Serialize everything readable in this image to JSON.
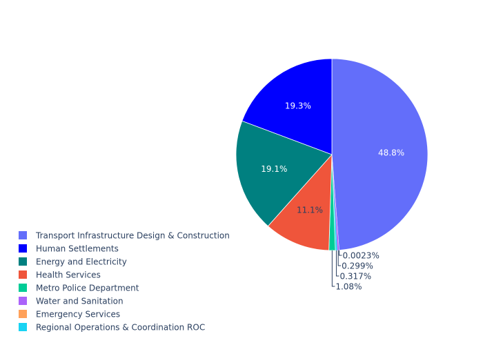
{
  "chart_data": {
    "type": "pie",
    "start_angle_deg": 90,
    "direction": "clockwise",
    "legend_position": "bottom-left",
    "slices": [
      {
        "label": "Transport Infrastructure Design & Construction",
        "percent": 48.8,
        "text": "48.8%",
        "color": "#636efa",
        "text_color": "#ffffff",
        "label_side": "inside"
      },
      {
        "label": "Emergency Services",
        "percent": 0.0023,
        "text": "0.0023%",
        "color": "#ffa15a",
        "text_color": "#2a3f5f",
        "label_side": "outside"
      },
      {
        "label": "Water and Sanitation",
        "percent": 0.299,
        "text": "0.299%",
        "color": "#ab63fa",
        "text_color": "#2a3f5f",
        "label_side": "outside"
      },
      {
        "label": "Regional Operations & Coordination ROC",
        "percent": 0.317,
        "text": "0.317%",
        "color": "#19d3f3",
        "text_color": "#2a3f5f",
        "label_side": "outside"
      },
      {
        "label": "Metro Police Department",
        "percent": 1.08,
        "text": "1.08%",
        "color": "#00cc96",
        "text_color": "#2a3f5f",
        "label_side": "outside"
      },
      {
        "label": "Health Services",
        "percent": 11.1,
        "text": "11.1%",
        "color": "#ef553b",
        "text_color": "#2a3f5f",
        "label_side": "inside"
      },
      {
        "label": "Energy and Electricity",
        "percent": 19.1,
        "text": "19.1%",
        "color": "#008080",
        "text_color": "#ffffff",
        "label_side": "inside"
      },
      {
        "label": "Human Settlements",
        "percent": 19.3,
        "text": "19.3%",
        "color": "#0000ff",
        "text_color": "#ffffff",
        "label_side": "inside"
      }
    ],
    "legend": [
      {
        "label": "Transport Infrastructure Design & Construction",
        "color": "#636efa"
      },
      {
        "label": "Human Settlements",
        "color": "#0000ff"
      },
      {
        "label": "Energy and Electricity",
        "color": "#008080"
      },
      {
        "label": "Health Services",
        "color": "#ef553b"
      },
      {
        "label": "Metro Police Department",
        "color": "#00cc96"
      },
      {
        "label": "Water and Sanitation",
        "color": "#ab63fa"
      },
      {
        "label": "Emergency Services",
        "color": "#ffa15a"
      },
      {
        "label": "Regional Operations & Coordination ROC",
        "color": "#19d3f3"
      }
    ]
  }
}
